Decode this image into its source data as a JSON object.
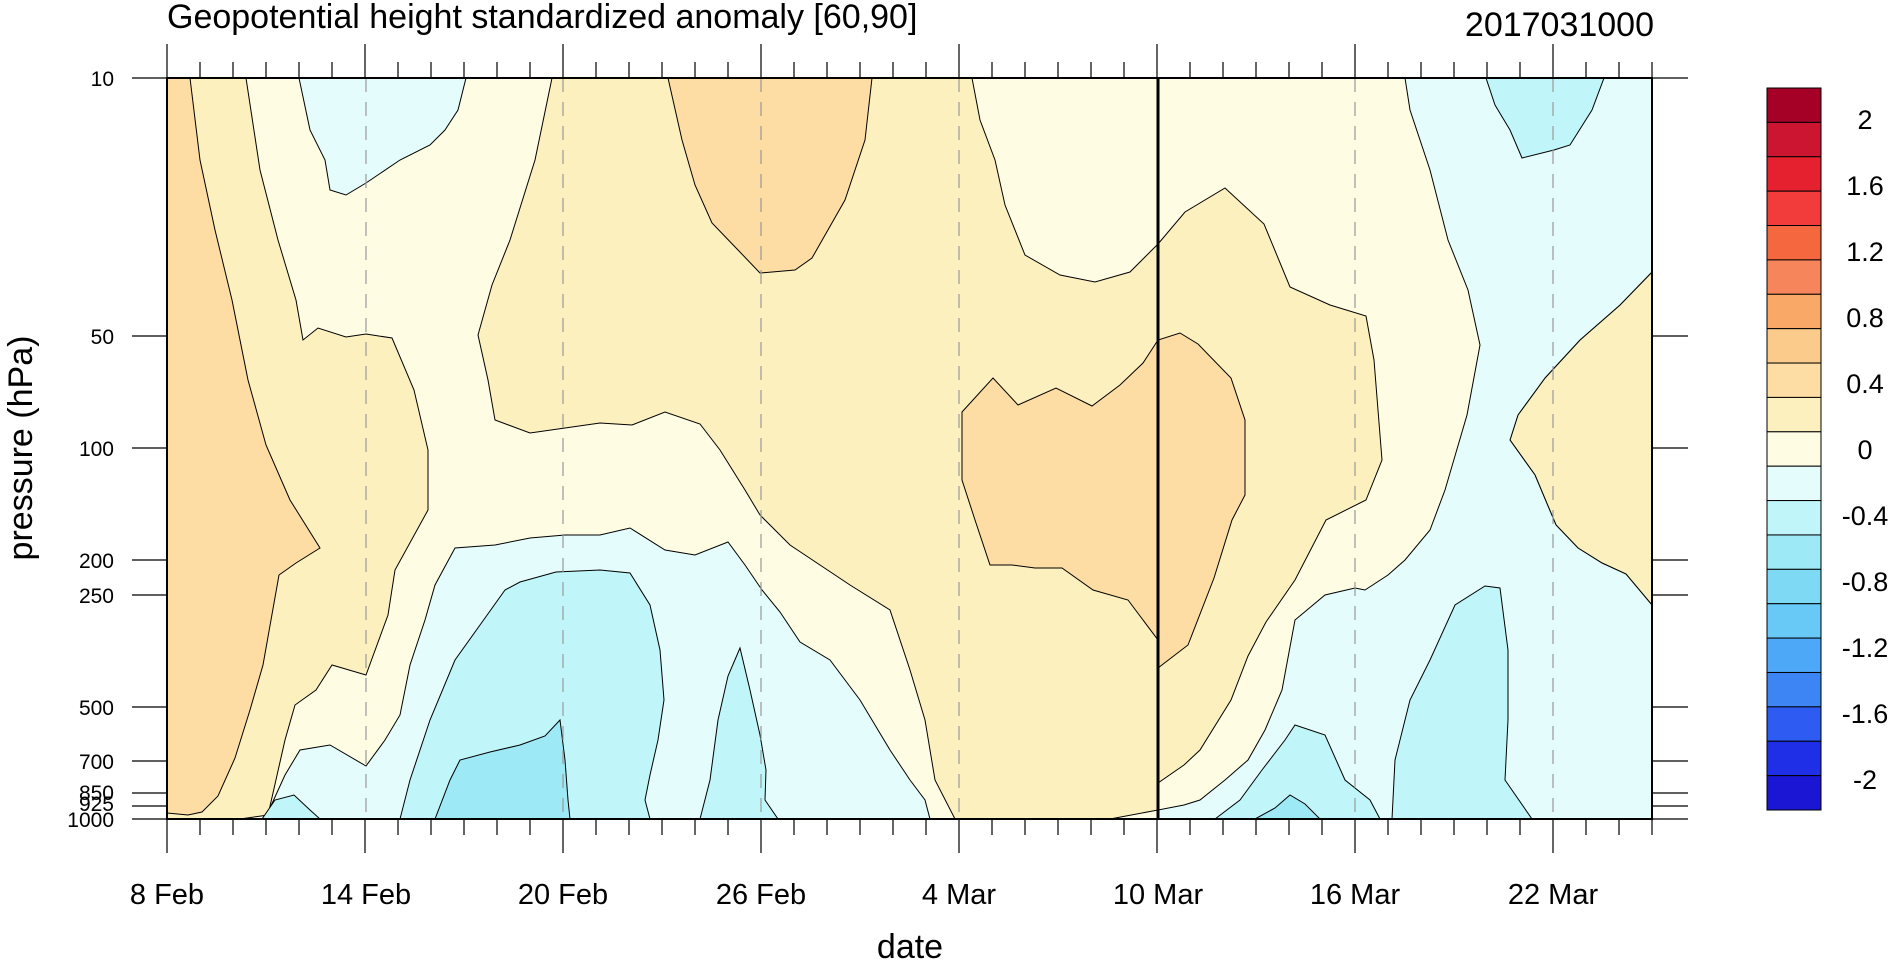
{
  "chart_data": {
    "type": "heatmap",
    "title": "Geopotential height standardized anomaly [60,90]",
    "date_stamp": "2017031000",
    "xlabel": "date",
    "ylabel": "pressure (hPa)",
    "x_ticks": [
      "8 Feb",
      "14 Feb",
      "20 Feb",
      "26 Feb",
      "4 Mar",
      "10 Mar",
      "16 Mar",
      "22 Mar"
    ],
    "x_range": [
      "8 Feb",
      "25 Mar"
    ],
    "y_levels_hPa": [
      10,
      50,
      100,
      200,
      250,
      500,
      700,
      850,
      925,
      1000
    ],
    "y_tick_labels": [
      "10",
      "50",
      "100",
      "200",
      "250",
      "500",
      "700",
      "850",
      "925",
      "1000"
    ],
    "y_scale": "log",
    "y_reversed": true,
    "current_date_marker": "10 Mar",
    "colorbar": {
      "levels": [
        -2,
        -1.8,
        -1.6,
        -1.4,
        -1.2,
        -1,
        -0.8,
        -0.6,
        -0.4,
        -0.2,
        0,
        0.2,
        0.4,
        0.6,
        0.8,
        1,
        1.2,
        1.4,
        1.6,
        1.8,
        2
      ],
      "labels": [
        "2",
        "1.6",
        "1.2",
        "0.8",
        "0.4",
        "0",
        "-0.4",
        "-0.8",
        "-1.2",
        "-1.6",
        "-2"
      ],
      "colors_top_to_bottom": [
        "#a50026",
        "#cc1530",
        "#e6212f",
        "#f23c3c",
        "#f5683f",
        "#f7855c",
        "#faa868",
        "#fbcb8c",
        "#fddda3",
        "#fdf0bf",
        "#fffce4",
        "#e4fcfc",
        "#c0f5f9",
        "#9de9f5",
        "#7dd9f4",
        "#68c8f6",
        "#4ea8f8",
        "#3d84f5",
        "#2e5bf1",
        "#1f2fe8",
        "#1a16d4"
      ]
    },
    "fill_colors": {
      "pos_0_0.2": "#fffce4",
      "pos_0.2_0.4": "#fdf0bf",
      "pos_0.4_0.6": "#fddda3",
      "pos_0.6_0.8": "#fbcb8c",
      "neg_0_-0.2": "#e4fcfc",
      "neg_-0.2_-0.4": "#c0f5f9",
      "neg_-0.4_-0.6": "#9de9f5",
      "neg_-0.6_-0.8": "#7dd9f4"
    }
  }
}
